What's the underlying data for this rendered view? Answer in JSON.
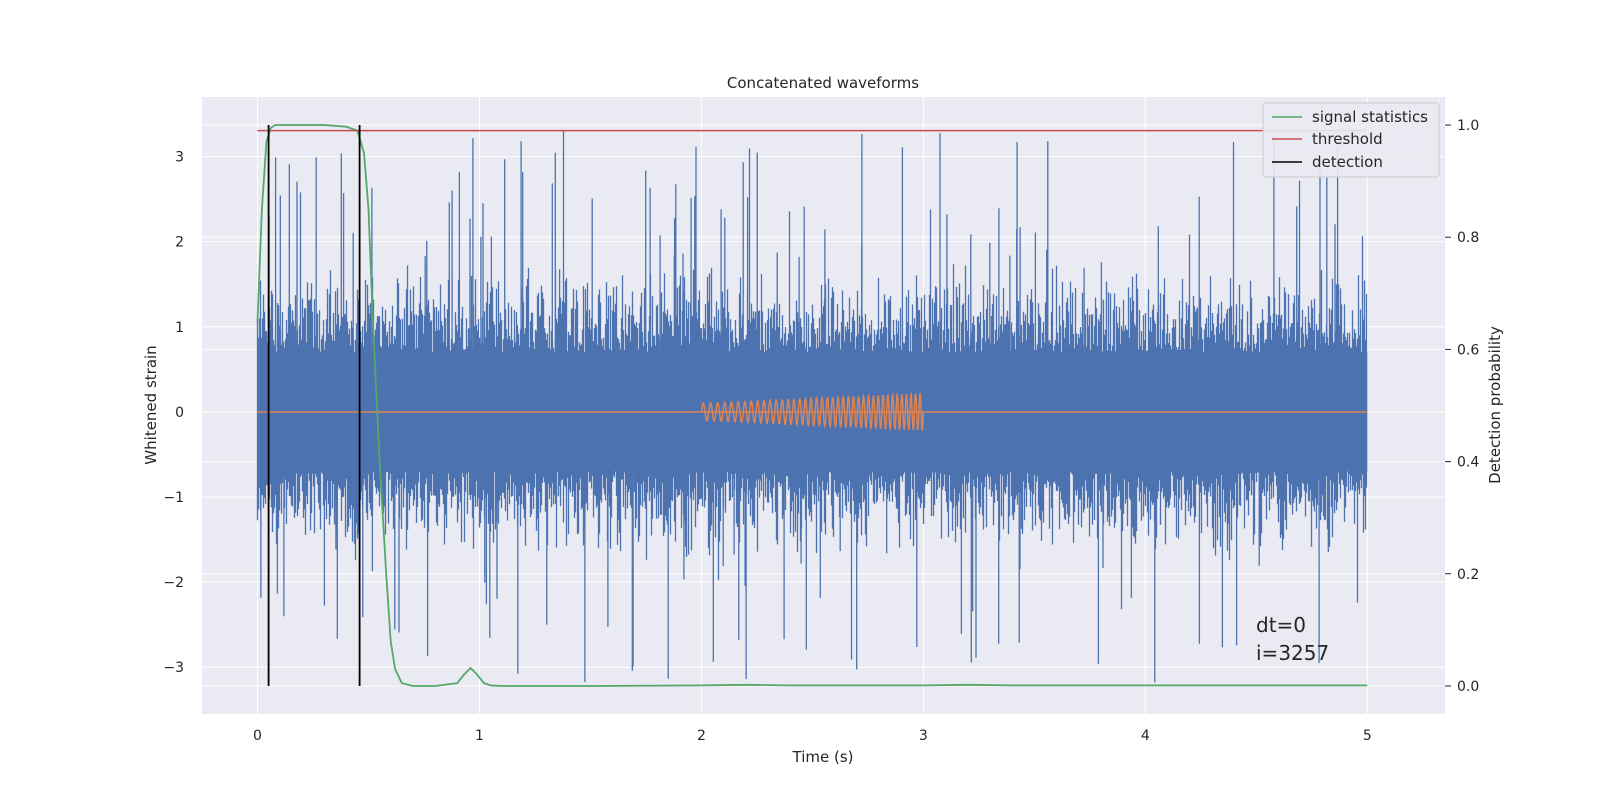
{
  "chart_data": {
    "type": "line",
    "title": "Concatenated waveforms",
    "xlabel": "Time (s)",
    "ylabel": "Whitened strain",
    "y2label": "Detection probability",
    "xlim": [
      -0.25,
      5.35
    ],
    "ylim": [
      -3.55,
      3.7
    ],
    "y2lim": [
      -0.05,
      1.05
    ],
    "xticks": [
      0,
      1,
      2,
      3,
      4,
      5
    ],
    "yticks": [
      -3,
      -2,
      -1,
      0,
      1,
      2,
      3
    ],
    "y2ticks": [
      0.0,
      0.2,
      0.4,
      0.6,
      0.8,
      1.0
    ],
    "xtick_labels": [
      "0",
      "1",
      "2",
      "3",
      "4",
      "5"
    ],
    "ytick_labels": [
      "−3",
      "−2",
      "−1",
      "0",
      "1",
      "2",
      "3"
    ],
    "y2tick_labels": [
      "0.0",
      "0.2",
      "0.4",
      "0.6",
      "0.8",
      "1.0"
    ],
    "grid": true,
    "legend_position": "top-right",
    "colors": {
      "background": "#eaeaf2",
      "grid": "#ffffff",
      "strain": "#4c72b0",
      "injection": "#dd8452",
      "signal_statistics": "#55a868",
      "threshold": "#c44e52",
      "detection": "#000000"
    },
    "series": [
      {
        "name": "signal statistics",
        "axis": "right",
        "x": [
          0.0,
          0.02,
          0.04,
          0.06,
          0.08,
          0.1,
          0.2,
          0.3,
          0.4,
          0.45,
          0.48,
          0.5,
          0.52,
          0.55,
          0.58,
          0.6,
          0.62,
          0.65,
          0.7,
          0.8,
          0.9,
          0.93,
          0.96,
          0.99,
          1.02,
          1.05,
          1.1,
          1.5,
          2.0,
          2.2,
          2.4,
          3.0,
          3.2,
          3.4,
          4.0,
          5.0
        ],
        "values": [
          0.65,
          0.85,
          0.97,
          0.995,
          1.0,
          1.0,
          1.0,
          1.0,
          0.997,
          0.99,
          0.95,
          0.85,
          0.65,
          0.4,
          0.2,
          0.08,
          0.03,
          0.005,
          0.0,
          0.0,
          0.005,
          0.02,
          0.032,
          0.02,
          0.005,
          0.001,
          0.0,
          0.0,
          0.001,
          0.002,
          0.001,
          0.001,
          0.002,
          0.001,
          0.001,
          0.001
        ]
      },
      {
        "name": "threshold",
        "axis": "right",
        "x": [
          0.0,
          5.0
        ],
        "values": [
          0.99,
          0.99
        ]
      },
      {
        "name": "detection",
        "axis": "left",
        "x": [
          0.05,
          0.46
        ]
      }
    ],
    "strain": {
      "x_range": [
        0.0,
        5.0
      ],
      "core_amplitude": 0.7,
      "noise_band": [
        -1.6,
        1.6
      ],
      "peak_limit": [
        -3.2,
        3.35
      ]
    },
    "injection": {
      "x_range": [
        2.0,
        3.0
      ],
      "amplitude_range": [
        0.1,
        0.22
      ],
      "baseline": 0
    },
    "annotation": {
      "dt_text": "dt=0",
      "i_text": "i=3257",
      "x": 4.5,
      "y": -2.7
    }
  }
}
